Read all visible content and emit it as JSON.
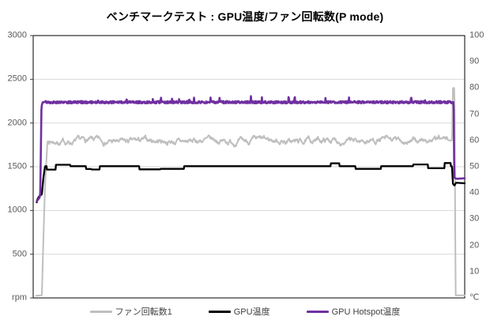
{
  "chart_data": {
    "type": "line",
    "title": "ベンチマークテスト : GPU温度/ファン回転数(P mode)",
    "legend_position": "bottom",
    "grid": "horizontal major gridlines from left axis (every 500 rpm)",
    "axes": {
      "left": {
        "unit": "rpm",
        "min": 0,
        "max": 3000,
        "tick_step": 500,
        "ticks": [
          3000,
          2500,
          2000,
          1500,
          1000,
          500,
          0
        ]
      },
      "right": {
        "unit": "℃",
        "min": 0,
        "max": 100,
        "tick_step": 10,
        "ticks": [
          100,
          90,
          80,
          70,
          60,
          50,
          40,
          30,
          20,
          10,
          0
        ]
      },
      "x": {
        "labels_visible": false
      }
    },
    "series": [
      {
        "key": "fan-speed",
        "name": "ファン回転数1",
        "axis": "left",
        "unit": "rpm",
        "color": "#BFBFBF",
        "stroke_width": 2,
        "steady_value": 1800,
        "end_spike_value": 2400,
        "idle_value": 30,
        "noise": {
          "type": "walk",
          "window": [
            0.036,
            0.963
          ]
        },
        "keypoints": [
          [
            0.0055,
            25
          ],
          [
            0.0201,
            30
          ],
          [
            0.0238,
            700
          ],
          [
            0.0275,
            1300
          ],
          [
            0.033,
            1790
          ],
          [
            0.967,
            1800
          ],
          [
            0.9707,
            1800
          ],
          [
            0.9725,
            2400
          ],
          [
            0.9762,
            2400
          ],
          [
            0.9789,
            30
          ],
          [
            1,
            30
          ]
        ]
      },
      {
        "key": "gpu-temp",
        "name": "GPU温度",
        "axis": "right",
        "unit": "℃",
        "color": "#000000",
        "stroke_width": 2.3,
        "steady_value": 50,
        "start_value": 37,
        "end_value": 43.7,
        "noise": {
          "type": "steps",
          "window": [
            0.031,
            0.968
          ]
        },
        "keypoints": [
          [
            0.0073,
            8
          ],
          [
            0.0082,
            37
          ],
          [
            0.0128,
            38.5
          ],
          [
            0.0201,
            39.5
          ],
          [
            0.0238,
            46
          ],
          [
            0.0275,
            50.2
          ],
          [
            0.9707,
            50.2
          ],
          [
            0.9725,
            43.6
          ],
          [
            0.9762,
            42.8
          ],
          [
            0.9798,
            43.9
          ],
          [
            1,
            43.7
          ]
        ]
      },
      {
        "key": "gpu-hotspot-temp",
        "name": "GPU Hotspot温度",
        "axis": "right",
        "unit": "℃",
        "color": "#7030A0",
        "stroke_width": 2.6,
        "steady_value": 74.6,
        "start_value": 37,
        "end_value": 45.6,
        "noise": {
          "type": "jitter-spikes",
          "window": [
            0.026,
            0.97
          ]
        },
        "keypoints": [
          [
            0.0073,
            5
          ],
          [
            0.0079,
            36.8
          ],
          [
            0.0147,
            38.2
          ],
          [
            0.0165,
            40
          ],
          [
            0.0192,
            73
          ],
          [
            0.022,
            74.6
          ],
          [
            0.9744,
            74.6
          ],
          [
            0.9758,
            45.8
          ],
          [
            0.9817,
            45.4
          ],
          [
            1,
            45.6
          ]
        ]
      }
    ],
    "colors": {
      "background": "#FFFFFF",
      "grid": "#D9D9D9",
      "border": "#000000",
      "tick_text": "#595959",
      "legend_text": "#404040"
    }
  }
}
